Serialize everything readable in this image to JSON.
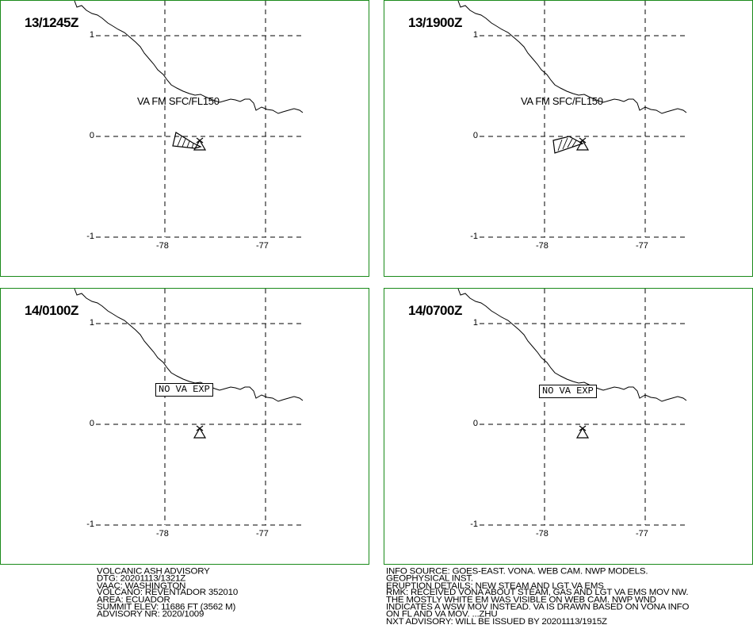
{
  "colors": {
    "frame": "#1a8a1a",
    "grid": "#000000",
    "coast": "#000000"
  },
  "panels": [
    {
      "time": "13/1245Z",
      "va_label": "VA FM SFC/FL150",
      "no_va": "",
      "has_polygon": true,
      "poly_variant": "a"
    },
    {
      "time": "13/1900Z",
      "va_label": "VA FM SFC/FL150",
      "no_va": "",
      "has_polygon": true,
      "poly_variant": "b"
    },
    {
      "time": "14/0100Z",
      "va_label": "",
      "no_va": "NO VA EXP",
      "has_polygon": false,
      "poly_variant": ""
    },
    {
      "time": "14/0700Z",
      "va_label": "",
      "no_va": "NO VA EXP",
      "has_polygon": false,
      "poly_variant": ""
    }
  ],
  "axes": {
    "lat_ticks": [
      "1",
      "0",
      "-1"
    ],
    "lon_ticks": [
      "-78",
      "-77"
    ]
  },
  "volcano": {
    "name": "REVENTADOR",
    "lat": -0.08,
    "lon": -77.66,
    "icon": "volcano-triangle-icon"
  },
  "advisory_left": [
    "VOLCANIC ASH ADVISORY",
    "DTG: 20201113/1321Z",
    "VAAC: WASHINGTON",
    "VOLCANO: REVENTADOR 352010",
    "AREA: ECUADOR",
    "SUMMIT ELEV: 11686 FT (3562 M)",
    "ADVISORY NR: 2020/1009"
  ],
  "advisory_right": [
    "INFO SOURCE: GOES-EAST. VONA. WEB CAM. NWP MODELS.",
    "GEOPHYSICAL INST.",
    "ERUPTION DETAILS: NEW STEAM AND LGT VA EMS",
    "RMK: RECEIVED VONA ABOUT STEAM, GAS AND LGT VA EMS MOV NW.",
    "THE MOSTLY WHITE EM WAS VISIBLE ON WEB CAM. NWP WND",
    "INDICATES A WSW MOV INSTEAD. VA IS DRAWN BASED ON VONA INFO",
    "ON FL AND VA MOV. ...ZHU",
    "NXT ADVISORY: WILL BE ISSUED BY 20201113/1915Z"
  ]
}
